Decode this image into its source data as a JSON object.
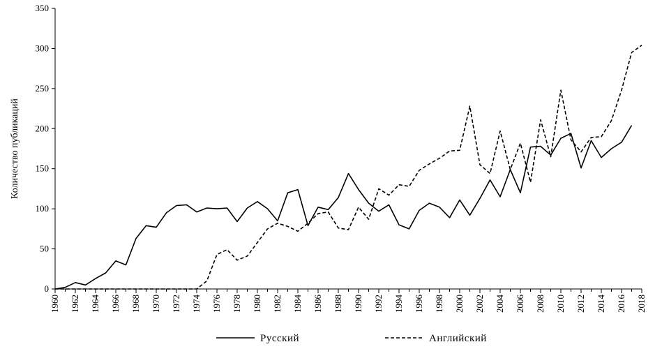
{
  "chart_data": {
    "type": "line",
    "ylabel": "Количество публикаций",
    "xlabel": "",
    "ylim": [
      0,
      350
    ],
    "xlim": [
      1960,
      2018
    ],
    "yticks": [
      "0",
      "50",
      "100",
      "150",
      "200",
      "250",
      "300",
      "350"
    ],
    "xticks": [
      "1960",
      "1962",
      "1964",
      "1966",
      "1968",
      "1970",
      "1972",
      "1974",
      "1976",
      "1978",
      "1980",
      "1982",
      "1984",
      "1986",
      "1988",
      "1990",
      "1992",
      "1994",
      "1996",
      "1998",
      "2000",
      "2002",
      "2004",
      "2006",
      "2008",
      "2010",
      "2012",
      "2014",
      "2016",
      "2018"
    ],
    "grid": false,
    "legend_position": "bottom",
    "x": [
      1960,
      1961,
      1962,
      1963,
      1964,
      1965,
      1966,
      1967,
      1968,
      1969,
      1970,
      1971,
      1972,
      1973,
      1974,
      1975,
      1976,
      1977,
      1978,
      1979,
      1980,
      1981,
      1982,
      1983,
      1984,
      1985,
      1986,
      1987,
      1988,
      1989,
      1990,
      1991,
      1992,
      1993,
      1994,
      1995,
      1996,
      1997,
      1998,
      1999,
      2000,
      2001,
      2002,
      2003,
      2004,
      2005,
      2006,
      2007,
      2008,
      2009,
      2010,
      2011,
      2012,
      2013,
      2014,
      2015,
      2016,
      2017,
      2018
    ],
    "series": [
      {
        "name": "Русский",
        "style": "solid",
        "values": [
          0,
          2,
          8,
          5,
          13,
          20,
          35,
          30,
          63,
          79,
          77,
          95,
          104,
          105,
          96,
          101,
          100,
          101,
          84,
          101,
          109,
          100,
          85,
          120,
          124,
          79,
          102,
          99,
          114,
          144,
          124,
          107,
          97,
          105,
          80,
          75,
          98,
          107,
          102,
          89,
          111,
          92,
          113,
          136,
          115,
          149,
          120,
          177,
          178,
          167,
          188,
          194,
          151,
          185,
          164,
          175,
          183,
          204,
          null
        ],
        "offset": 1
      },
      {
        "name": "Английский",
        "style": "dashed",
        "values": [
          0,
          0,
          0,
          0,
          0,
          0,
          0,
          0,
          0,
          0,
          0,
          0,
          0,
          0,
          0,
          10,
          43,
          49,
          36,
          41,
          58,
          75,
          82,
          78,
          72,
          82,
          94,
          96,
          76,
          74,
          102,
          87,
          125,
          117,
          130,
          128,
          148,
          156,
          163,
          172,
          173,
          228,
          155,
          144,
          197,
          149,
          182,
          133,
          211,
          165,
          248,
          186,
          171,
          189,
          190,
          210,
          248,
          295,
          304
        ],
        "offset": 0
      }
    ]
  }
}
